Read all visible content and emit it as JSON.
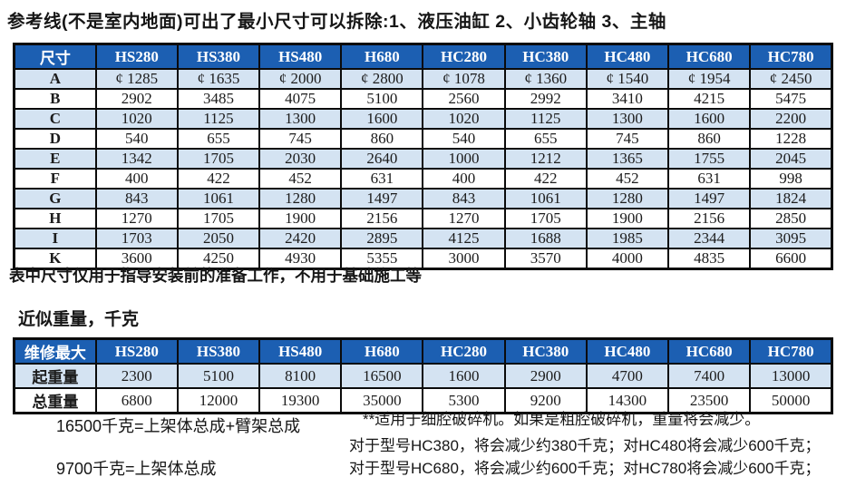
{
  "page": {
    "title": "参考线(不是室内地面)可出了最小尺寸可以拆除:1、液压油缸 2、小齿轮轴 3、主轴",
    "note_after_dimensions": "表中尺寸仅用于指导安装前的准备工作，不用于基础施工等",
    "weights_heading": "近似重量，千克"
  },
  "colors": {
    "header_bg": "#1c5fb2",
    "header_text": "#ffffff",
    "row_alt_bg": "#d4e3f2",
    "row_bg": "#ffffff",
    "border": "#0b0b0b",
    "text": "#1c1c1c"
  },
  "dimensions_table": {
    "header": [
      "尺寸",
      "HS280",
      "HS380",
      "HS480",
      "H680",
      "HC280",
      "HC380",
      "HC480",
      "HC680",
      "HC780"
    ],
    "rows": [
      {
        "label": "A",
        "values": [
          "¢ 1285",
          "¢ 1635",
          "¢ 2000",
          "¢ 2800",
          "¢ 1078",
          "¢ 1360",
          "¢ 1540",
          "¢ 1954",
          "¢ 2450"
        ]
      },
      {
        "label": "B",
        "values": [
          "2902",
          "3485",
          "4075",
          "5100",
          "2560",
          "2992",
          "3410",
          "4215",
          "5475"
        ]
      },
      {
        "label": "C",
        "values": [
          "1020",
          "1125",
          "1300",
          "1600",
          "1020",
          "1125",
          "1300",
          "1600",
          "2200"
        ]
      },
      {
        "label": "D",
        "values": [
          "540",
          "655",
          "745",
          "860",
          "540",
          "655",
          "745",
          "860",
          "1228"
        ]
      },
      {
        "label": "E",
        "values": [
          "1342",
          "1705",
          "2030",
          "2640",
          "1000",
          "1212",
          "1365",
          "1755",
          "2045"
        ]
      },
      {
        "label": "F",
        "values": [
          "400",
          "422",
          "452",
          "631",
          "400",
          "422",
          "452",
          "631",
          "998"
        ]
      },
      {
        "label": "G",
        "values": [
          "843",
          "1061",
          "1280",
          "1497",
          "843",
          "1061",
          "1280",
          "1497",
          "1824"
        ]
      },
      {
        "label": "H",
        "values": [
          "1270",
          "1705",
          "1900",
          "2156",
          "1270",
          "1705",
          "1900",
          "2156",
          "2850"
        ]
      },
      {
        "label": "I",
        "values": [
          "1703",
          "2050",
          "2420",
          "2895",
          "4125",
          "1688",
          "1985",
          "2344",
          "3095"
        ]
      },
      {
        "label": "K",
        "values": [
          "3600",
          "4250",
          "4930",
          "5355",
          "3000",
          "3570",
          "4000",
          "4835",
          "6600"
        ]
      }
    ]
  },
  "weights_table": {
    "header": [
      "维修最大",
      "HS280",
      "HS380",
      "HS480",
      "H680",
      "HC280",
      "HC380",
      "HC480",
      "HC680",
      "HC780"
    ],
    "rows": [
      {
        "label": "起重量",
        "values": [
          "2300",
          "5100",
          "8100",
          "16500",
          "1600",
          "2900",
          "4700",
          "7400",
          "13000"
        ]
      },
      {
        "label": "总重量",
        "values": [
          "6800",
          "12000",
          "19300",
          "35000",
          "5300",
          "9200",
          "14300",
          "23500",
          "50000"
        ]
      }
    ]
  },
  "footnotes": {
    "left": [
      "16500千克=上架体总成+臂架总成",
      "9700千克=上架体总成"
    ],
    "right": [
      "**适用于细腔破碎机。如果是粗腔破碎机，重量将会减少。",
      "对于型号HC380，将会减少约380千克；对HC480将会减少600千克；",
      "对于型号HC680，将会减少约600千克；对HC780将会减少600千克；"
    ]
  }
}
